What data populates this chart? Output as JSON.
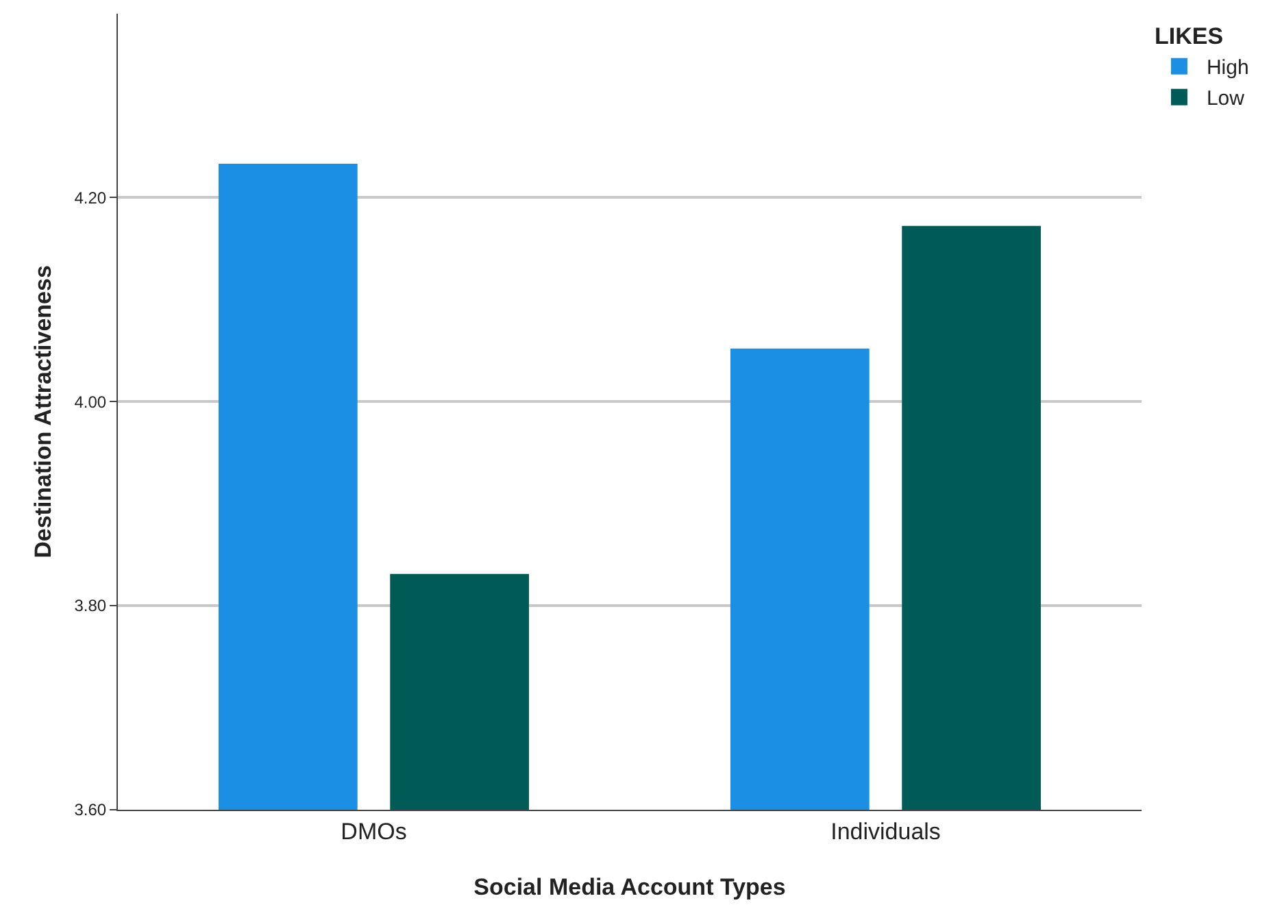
{
  "chart_data": {
    "type": "bar",
    "xlabel": "Social Media Account Types",
    "ylabel": "Destination Attractiveness",
    "legend_title": "LIKES",
    "categories": [
      "DMOs",
      "Individuals"
    ],
    "series": [
      {
        "name": "High",
        "color": "#1a8fe3",
        "values": [
          4.233,
          4.052
        ]
      },
      {
        "name": "Low",
        "color": "#005b57",
        "values": [
          3.831,
          4.172
        ]
      }
    ],
    "ylim": [
      3.6,
      4.38
    ],
    "yticks": [
      {
        "value": 3.6,
        "label": "3.60"
      },
      {
        "value": 3.8,
        "label": "3.80"
      },
      {
        "value": 4.0,
        "label": "4.00"
      },
      {
        "value": 4.2,
        "label": "4.20"
      }
    ],
    "grid": "y",
    "legend": "top right"
  }
}
